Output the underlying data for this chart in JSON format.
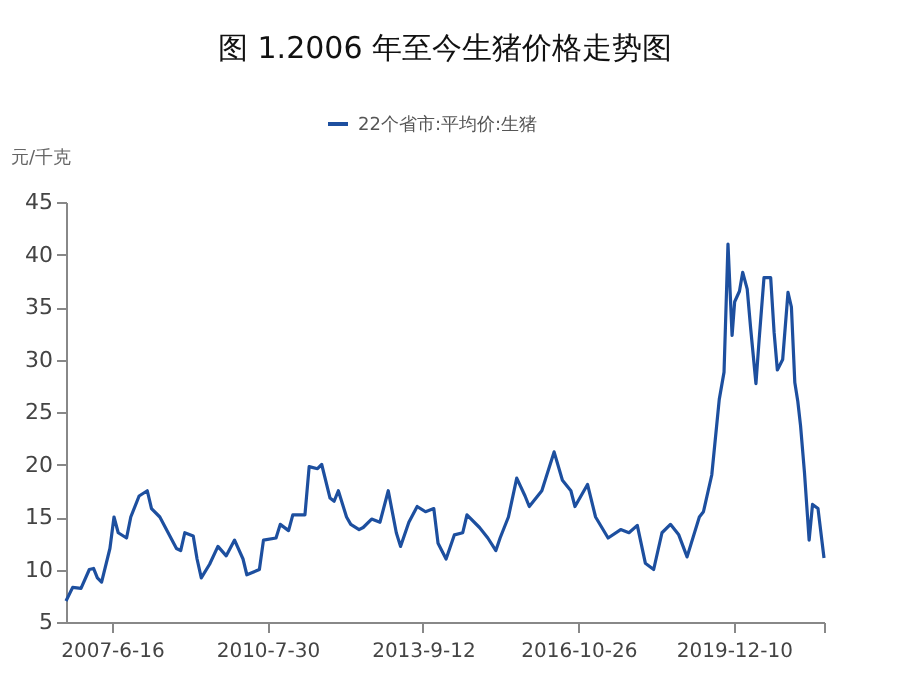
{
  "chart_data": {
    "type": "line",
    "title": "图 1.2006 年至今生猪价格走势图",
    "ylabel": "元/千克",
    "x": [
      "2006-07-14",
      "2006-09",
      "2006-11",
      "2007-01",
      "2007-02",
      "2007-03",
      "2007-04",
      "2007-06",
      "2007-07",
      "2007-08",
      "2007-10",
      "2007-11",
      "2008-01",
      "2008-03",
      "2008-04",
      "2008-06",
      "2008-08",
      "2008-10",
      "2008-11",
      "2008-12",
      "2009-02",
      "2009-03",
      "2009-04",
      "2009-06",
      "2009-08",
      "2009-10",
      "2009-12",
      "2010-02",
      "2010-03",
      "2010-06",
      "2010-07",
      "2010-10",
      "2010-11",
      "2011-01",
      "2011-02",
      "2011-05",
      "2011-06",
      "2011-08",
      "2011-09",
      "2011-11",
      "2011-12",
      "2012-01",
      "2012-03",
      "2012-04",
      "2012-06",
      "2012-07",
      "2012-09",
      "2012-11",
      "2013-01",
      "2013-03",
      "2013-04",
      "2013-06",
      "2013-08",
      "2013-10",
      "2013-12",
      "2014-01",
      "2014-03",
      "2014-05",
      "2014-07",
      "2014-08",
      "2014-11",
      "2015-01",
      "2015-03",
      "2015-04",
      "2015-06",
      "2015-08",
      "2015-10",
      "2015-11",
      "2016-02",
      "2016-03",
      "2016-05",
      "2016-07",
      "2016-09",
      "2016-10",
      "2017-01",
      "2017-03",
      "2017-06",
      "2017-09",
      "2017-11",
      "2018-01",
      "2018-03",
      "2018-05",
      "2018-07",
      "2018-09",
      "2018-11",
      "2019-01",
      "2019-04",
      "2019-05",
      "2019-07",
      "2019-08-25",
      "2019-09-29",
      "2019-10-28",
      "2019-11-27",
      "2019-12-16",
      "2020-01-20",
      "2020-02-13",
      "2020-03-17",
      "2020-04-11",
      "2020-05-20",
      "2020-06-13",
      "2020-07-18",
      "2020-09-05",
      "2020-09-30",
      "2020-10-24",
      "2020-12-02",
      "2021-01-10",
      "2021-02-04",
      "2021-03-01",
      "2021-03-23",
      "2021-04-12",
      "2021-05-11",
      "2021-06-14",
      "2021-07-09",
      "2021-08-18",
      "2021-10-01"
    ],
    "series": [
      {
        "name": "22个省市:平均价:生猪",
        "color": "#1d4f9f",
        "values": [
          7,
          8.3,
          8.2,
          10,
          10.1,
          9.2,
          8.8,
          12,
          15,
          13.5,
          13,
          15,
          17,
          17.5,
          15.8,
          15,
          13.5,
          12,
          11.8,
          13.5,
          13.2,
          11,
          9.2,
          10.5,
          12.2,
          11.3,
          12.8,
          11,
          9.5,
          10,
          12.8,
          13,
          14.3,
          13.7,
          15.2,
          15.2,
          19.8,
          19.6,
          20,
          16.8,
          16.5,
          17.5,
          15,
          14.3,
          13.8,
          14,
          14.8,
          14.5,
          17.5,
          13.5,
          12.2,
          14.5,
          16,
          15.5,
          15.8,
          12.5,
          11,
          13.3,
          13.5,
          15.2,
          14,
          13,
          11.8,
          13,
          15,
          18.7,
          17,
          16,
          17.5,
          18.7,
          21.2,
          18.5,
          17.5,
          16,
          18.1,
          15,
          13,
          13.8,
          13.5,
          14.2,
          10.6,
          10,
          13.5,
          14.3,
          13.3,
          11.2,
          15,
          15.5,
          19,
          26.2,
          28.8,
          41,
          32.3,
          35.5,
          36.5,
          38.3,
          36.7,
          33,
          27.7,
          32,
          37.8,
          37.8,
          32.6,
          29,
          30,
          36.4,
          35,
          27.8,
          26,
          23.7,
          19.2,
          12.8,
          16.2,
          15.8,
          11.1
        ]
      }
    ],
    "xlim": [
      "2006-07-14",
      "2021-10-01"
    ],
    "xticks": [
      {
        "value": "2007-06-16",
        "label": "2007-6-16"
      },
      {
        "value": "2010-07-30",
        "label": "2010-7-30"
      },
      {
        "value": "2013-09-12",
        "label": "2013-9-12"
      },
      {
        "value": "2016-10-26",
        "label": "2016-10-26"
      },
      {
        "value": "2019-12-10",
        "label": "2019-12-10"
      },
      {
        "value": "2021-10-01",
        "label": null
      }
    ],
    "ylim": [
      5,
      45
    ],
    "yticks": [
      5,
      10,
      15,
      20,
      25,
      30,
      35,
      40,
      45
    ],
    "grid": false,
    "legend": "top"
  }
}
